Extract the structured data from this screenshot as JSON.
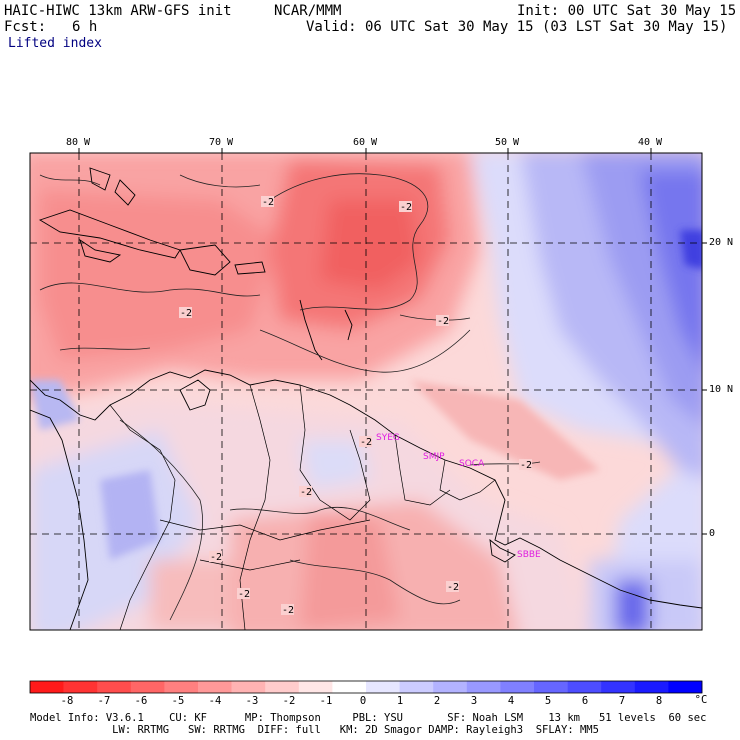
{
  "header": {
    "model_title": "HAIC-HIWC 13km ARW-GFS init",
    "org": "NCAR/MMM",
    "init": "Init: 00 UTC Sat 30 May 15",
    "fcst_label": "Fcst:",
    "fcst_value": "6 h",
    "valid": "Valid: 06 UTC Sat 30 May 15 (03 LST Sat 30 May 15)",
    "field": "Lifted index"
  },
  "map": {
    "lon_labels": [
      "80 W",
      "70 W",
      "60 W",
      "50 W",
      "40 W"
    ],
    "lat_labels": [
      "20 N",
      "10 N",
      "0"
    ],
    "stations": [
      "SYEG",
      "SMJP",
      "SOCA",
      "SBBE"
    ],
    "contour_labels": [
      "-2",
      "-2",
      "-2",
      "-2",
      "-2",
      "-2",
      "-2",
      "-2",
      "-2",
      "-2",
      "-2"
    ],
    "station_color": "#e020e0"
  },
  "colorbar": {
    "labels": [
      "-8",
      "-7",
      "-6",
      "-5",
      "-4",
      "-3",
      "-2",
      "-1",
      "0",
      "1",
      "2",
      "3",
      "4",
      "5",
      "6",
      "7",
      "8"
    ],
    "unit": "°C",
    "colors": [
      "#ff1a1a",
      "#ff3333",
      "#ff4d4d",
      "#ff6666",
      "#ff8080",
      "#ff9999",
      "#ffb3b3",
      "#ffcccc",
      "#ffe6e6",
      "#ffffff",
      "#e6e6ff",
      "#ccccff",
      "#b3b3ff",
      "#9999ff",
      "#8080ff",
      "#6666ff",
      "#4d4dff",
      "#3333ff",
      "#1a1aff",
      "#0000ff"
    ]
  },
  "footer": {
    "line1": "Model Info: V3.6.1    CU: KF      MP: Thompson     PBL: YSU       SF: Noah LSM    13 km   51 levels  60 sec",
    "line2": "             LW: RRTMG   SW: RRTMG  DIFF: full   KM: 2D Smagor DAMP: Rayleigh3  SFLAY: MM5"
  }
}
